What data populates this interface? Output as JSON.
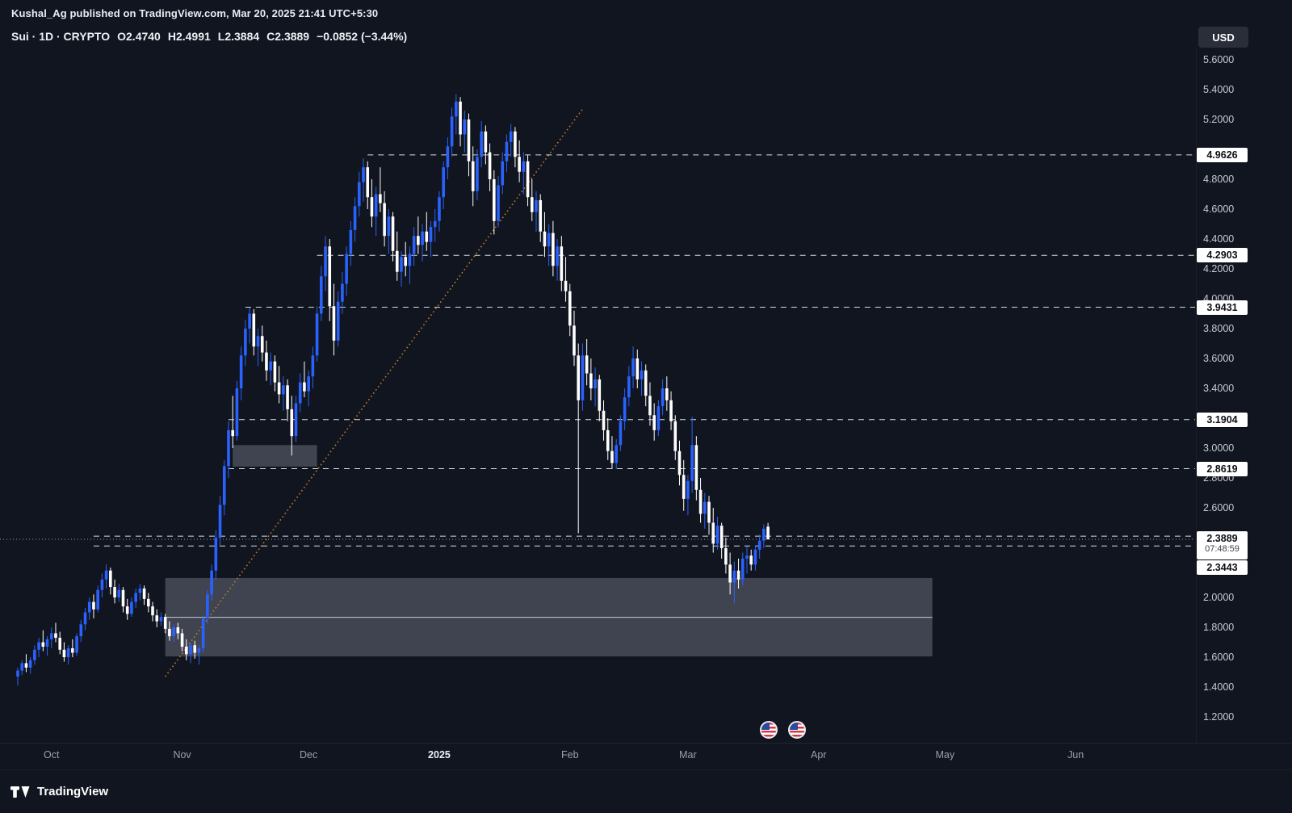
{
  "publish_bar": {
    "text": "Kushal_Ag published on TradingView.com, Mar 20, 2025 21:41 UTC+5:30"
  },
  "legend": {
    "title": "Sui · 1D · CRYPTO",
    "o": "O2.4740",
    "h": "H2.4991",
    "l": "L2.3884",
    "c": "C2.3889",
    "change": "−0.0852 (−3.44%)"
  },
  "currency_button": {
    "label": "USD"
  },
  "footer": {
    "brand": "TradingView"
  },
  "colors": {
    "background": "#11151f",
    "up_candle": "#2962ff",
    "down_candle": "#ffffff",
    "trendline": "#c07b25",
    "box_fill": "rgba(152,158,172,0.35)",
    "dashed_line": "rgba(238,241,248,0.9)",
    "current_line": "rgba(170,176,190,0.9)",
    "label_bg": "#ffffff"
  },
  "chart_data": {
    "type": "candlestick",
    "symbol": "Sui",
    "interval": "1D",
    "exchange": "CRYPTO",
    "currency": "USD",
    "ohlc_display": {
      "open": "2.4740",
      "high": "2.4991",
      "low": "2.3884",
      "close": "2.3889",
      "change": "−0.0852 (−3.44%)"
    },
    "y_axis_ticks": [
      {
        "label": "5.6000",
        "price": 5.6
      },
      {
        "label": "5.4000",
        "price": 5.4
      },
      {
        "label": "5.2000",
        "price": 5.2
      },
      {
        "label": "4.8000",
        "price": 4.8
      },
      {
        "label": "4.6000",
        "price": 4.6
      },
      {
        "label": "4.4000",
        "price": 4.4
      },
      {
        "label": "4.2000",
        "price": 4.2
      },
      {
        "label": "4.0000",
        "price": 4.0
      },
      {
        "label": "3.8000",
        "price": 3.8
      },
      {
        "label": "3.6000",
        "price": 3.6
      },
      {
        "label": "3.4000",
        "price": 3.4
      },
      {
        "label": "3.0000",
        "price": 3.0
      },
      {
        "label": "2.8000",
        "price": 2.8
      },
      {
        "label": "2.6000",
        "price": 2.6
      },
      {
        "label": "2.0000",
        "price": 2.0
      },
      {
        "label": "1.8000",
        "price": 1.8
      },
      {
        "label": "1.6000",
        "price": 1.6
      },
      {
        "label": "1.4000",
        "price": 1.4
      },
      {
        "label": "1.2000",
        "price": 1.2
      }
    ],
    "x_axis_labels": [
      {
        "label": "Oct",
        "index": 8
      },
      {
        "label": "Nov",
        "index": 39
      },
      {
        "label": "Dec",
        "index": 69
      },
      {
        "label": "2025",
        "index": 100,
        "bold": true
      },
      {
        "label": "Feb",
        "index": 131
      },
      {
        "label": "Mar",
        "index": 159
      },
      {
        "label": "Apr",
        "index": 190
      },
      {
        "label": "May",
        "index": 220
      },
      {
        "label": "Jun",
        "index": 251
      }
    ],
    "price_lines": [
      {
        "label": "4.9626",
        "price": 4.9626,
        "start_index": 83
      },
      {
        "label": "4.2903",
        "price": 4.2903,
        "start_index": 71
      },
      {
        "label": "3.9431",
        "price": 3.9431,
        "start_index": 54
      },
      {
        "label": "3.1904",
        "price": 3.1904,
        "start_index": 50
      },
      {
        "label": "2.8619",
        "price": 2.8619,
        "start_index": 50
      },
      {
        "label": "",
        "price": 2.41,
        "start_index": 18
      },
      {
        "label": "2.3443",
        "price": 2.3443,
        "start_index": 18
      }
    ],
    "current_price": {
      "label": "2.3889",
      "price": 2.3889,
      "countdown": "07:48:59"
    },
    "boxes": [
      {
        "start_index": 51,
        "end_index": 71,
        "top": 3.02,
        "bottom": 2.876
      },
      {
        "start_index": 35,
        "end_index": 217,
        "top": 2.13,
        "bottom": 1.605,
        "midline": 1.867
      }
    ],
    "trendline": {
      "start_index": 35,
      "start_price": 1.47,
      "end_index": 134,
      "end_price": 5.27
    },
    "candles": [
      [
        1.47,
        1.53,
        1.41,
        1.51
      ],
      [
        1.51,
        1.58,
        1.48,
        1.56
      ],
      [
        1.56,
        1.62,
        1.5,
        1.53
      ],
      [
        1.53,
        1.6,
        1.49,
        1.58
      ],
      [
        1.58,
        1.68,
        1.55,
        1.65
      ],
      [
        1.65,
        1.73,
        1.6,
        1.7
      ],
      [
        1.7,
        1.78,
        1.64,
        1.67
      ],
      [
        1.67,
        1.74,
        1.61,
        1.72
      ],
      [
        1.72,
        1.8,
        1.66,
        1.76
      ],
      [
        1.76,
        1.83,
        1.7,
        1.73
      ],
      [
        1.73,
        1.77,
        1.62,
        1.65
      ],
      [
        1.65,
        1.7,
        1.57,
        1.6
      ],
      [
        1.6,
        1.68,
        1.55,
        1.66
      ],
      [
        1.66,
        1.72,
        1.6,
        1.63
      ],
      [
        1.63,
        1.76,
        1.61,
        1.74
      ],
      [
        1.74,
        1.85,
        1.7,
        1.82
      ],
      [
        1.82,
        1.93,
        1.78,
        1.9
      ],
      [
        1.9,
        2.0,
        1.85,
        1.97
      ],
      [
        1.97,
        2.02,
        1.86,
        1.92
      ],
      [
        1.92,
        2.08,
        1.9,
        2.05
      ],
      [
        2.05,
        2.16,
        2.0,
        2.12
      ],
      [
        2.12,
        2.22,
        2.06,
        2.18
      ],
      [
        2.18,
        2.2,
        2.02,
        2.07
      ],
      [
        2.07,
        2.12,
        1.96,
        2.0
      ],
      [
        2.0,
        2.09,
        1.97,
        2.05
      ],
      [
        2.05,
        2.07,
        1.9,
        1.94
      ],
      [
        1.94,
        1.99,
        1.85,
        1.89
      ],
      [
        1.89,
        2.0,
        1.87,
        1.97
      ],
      [
        1.97,
        2.06,
        1.93,
        2.03
      ],
      [
        2.03,
        2.09,
        1.98,
        2.06
      ],
      [
        2.06,
        2.08,
        1.95,
        1.99
      ],
      [
        1.99,
        2.03,
        1.9,
        1.94
      ],
      [
        1.94,
        1.97,
        1.84,
        1.88
      ],
      [
        1.88,
        1.92,
        1.8,
        1.84
      ],
      [
        1.84,
        1.9,
        1.81,
        1.87
      ],
      [
        1.87,
        1.89,
        1.76,
        1.79
      ],
      [
        1.79,
        1.84,
        1.71,
        1.74
      ],
      [
        1.74,
        1.82,
        1.7,
        1.8
      ],
      [
        1.8,
        1.83,
        1.72,
        1.76
      ],
      [
        1.76,
        1.79,
        1.64,
        1.67
      ],
      [
        1.67,
        1.72,
        1.58,
        1.62
      ],
      [
        1.62,
        1.7,
        1.56,
        1.68
      ],
      [
        1.68,
        1.71,
        1.59,
        1.63
      ],
      [
        1.63,
        1.68,
        1.55,
        1.66
      ],
      [
        1.66,
        1.88,
        1.63,
        1.86
      ],
      [
        1.86,
        2.05,
        1.82,
        2.02
      ],
      [
        2.02,
        2.22,
        1.98,
        2.18
      ],
      [
        2.18,
        2.45,
        2.12,
        2.4
      ],
      [
        2.4,
        2.68,
        2.35,
        2.62
      ],
      [
        2.62,
        2.92,
        2.55,
        2.88
      ],
      [
        2.88,
        3.18,
        2.8,
        3.12
      ],
      [
        3.12,
        3.35,
        3.0,
        3.08
      ],
      [
        3.08,
        3.45,
        3.05,
        3.4
      ],
      [
        3.4,
        3.68,
        3.32,
        3.62
      ],
      [
        3.62,
        3.86,
        3.55,
        3.8
      ],
      [
        3.8,
        3.94,
        3.7,
        3.9
      ],
      [
        3.9,
        3.93,
        3.62,
        3.68
      ],
      [
        3.68,
        3.8,
        3.55,
        3.75
      ],
      [
        3.75,
        3.82,
        3.58,
        3.64
      ],
      [
        3.64,
        3.72,
        3.45,
        3.52
      ],
      [
        3.52,
        3.64,
        3.42,
        3.58
      ],
      [
        3.58,
        3.62,
        3.38,
        3.44
      ],
      [
        3.44,
        3.55,
        3.3,
        3.36
      ],
      [
        3.36,
        3.48,
        3.25,
        3.42
      ],
      [
        3.42,
        3.46,
        3.18,
        3.26
      ],
      [
        3.26,
        3.35,
        2.95,
        3.08
      ],
      [
        3.08,
        3.35,
        3.04,
        3.3
      ],
      [
        3.3,
        3.5,
        3.24,
        3.44
      ],
      [
        3.44,
        3.58,
        3.34,
        3.38
      ],
      [
        3.38,
        3.52,
        3.28,
        3.48
      ],
      [
        3.48,
        3.68,
        3.4,
        3.62
      ],
      [
        3.62,
        3.95,
        3.58,
        3.9
      ],
      [
        3.9,
        4.22,
        3.85,
        4.15
      ],
      [
        4.15,
        4.42,
        4.05,
        4.35
      ],
      [
        4.35,
        4.4,
        3.85,
        3.95
      ],
      [
        3.95,
        4.1,
        3.62,
        3.72
      ],
      [
        3.72,
        4.05,
        3.68,
        3.98
      ],
      [
        3.98,
        4.18,
        3.9,
        4.1
      ],
      [
        4.1,
        4.35,
        4.02,
        4.3
      ],
      [
        4.3,
        4.52,
        4.22,
        4.46
      ],
      [
        4.46,
        4.68,
        4.38,
        4.62
      ],
      [
        4.62,
        4.85,
        4.55,
        4.78
      ],
      [
        4.78,
        4.94,
        4.65,
        4.88
      ],
      [
        4.88,
        4.92,
        4.6,
        4.68
      ],
      [
        4.68,
        4.8,
        4.48,
        4.55
      ],
      [
        4.55,
        4.75,
        4.42,
        4.7
      ],
      [
        4.7,
        4.88,
        4.58,
        4.64
      ],
      [
        4.64,
        4.72,
        4.35,
        4.42
      ],
      [
        4.42,
        4.6,
        4.3,
        4.55
      ],
      [
        4.55,
        4.58,
        4.25,
        4.32
      ],
      [
        4.32,
        4.45,
        4.12,
        4.18
      ],
      [
        4.18,
        4.32,
        4.08,
        4.28
      ],
      [
        4.28,
        4.38,
        4.15,
        4.22
      ],
      [
        4.22,
        4.35,
        4.1,
        4.3
      ],
      [
        4.3,
        4.48,
        4.22,
        4.42
      ],
      [
        4.42,
        4.55,
        4.3,
        4.36
      ],
      [
        4.36,
        4.5,
        4.25,
        4.45
      ],
      [
        4.45,
        4.58,
        4.32,
        4.38
      ],
      [
        4.38,
        4.52,
        4.28,
        4.48
      ],
      [
        4.48,
        4.6,
        4.38,
        4.52
      ],
      [
        4.52,
        4.72,
        4.45,
        4.68
      ],
      [
        4.68,
        4.92,
        4.6,
        4.88
      ],
      [
        4.88,
        5.08,
        4.8,
        5.02
      ],
      [
        5.02,
        5.28,
        4.95,
        5.22
      ],
      [
        5.22,
        5.37,
        5.1,
        5.32
      ],
      [
        5.32,
        5.35,
        5.02,
        5.1
      ],
      [
        5.1,
        5.26,
        4.98,
        5.2
      ],
      [
        5.2,
        5.24,
        4.82,
        4.92
      ],
      [
        4.92,
        5.02,
        4.62,
        4.72
      ],
      [
        4.72,
        5.0,
        4.66,
        4.95
      ],
      [
        4.95,
        5.19,
        4.88,
        5.12
      ],
      [
        5.12,
        5.16,
        4.9,
        4.98
      ],
      [
        4.98,
        5.04,
        4.72,
        4.8
      ],
      [
        4.8,
        4.86,
        4.43,
        4.52
      ],
      [
        4.52,
        4.82,
        4.48,
        4.76
      ],
      [
        4.76,
        4.98,
        4.7,
        4.92
      ],
      [
        4.92,
        5.1,
        4.85,
        5.05
      ],
      [
        5.05,
        5.17,
        4.95,
        5.12
      ],
      [
        5.12,
        5.15,
        4.88,
        4.95
      ],
      [
        4.95,
        5.06,
        4.78,
        4.85
      ],
      [
        4.85,
        4.98,
        4.7,
        4.92
      ],
      [
        4.92,
        4.96,
        4.62,
        4.68
      ],
      [
        4.68,
        4.8,
        4.52,
        4.58
      ],
      [
        4.58,
        4.72,
        4.45,
        4.66
      ],
      [
        4.66,
        4.7,
        4.38,
        4.45
      ],
      [
        4.45,
        4.58,
        4.28,
        4.35
      ],
      [
        4.35,
        4.5,
        4.22,
        4.44
      ],
      [
        4.44,
        4.52,
        4.15,
        4.22
      ],
      [
        4.22,
        4.4,
        4.12,
        4.35
      ],
      [
        4.35,
        4.42,
        4.05,
        4.12
      ],
      [
        4.12,
        4.28,
        3.98,
        4.05
      ],
      [
        4.05,
        4.1,
        3.75,
        3.82
      ],
      [
        3.82,
        3.92,
        3.55,
        3.62
      ],
      [
        3.62,
        3.7,
        2.43,
        3.32
      ],
      [
        3.32,
        3.7,
        3.25,
        3.62
      ],
      [
        3.62,
        3.73,
        3.42,
        3.5
      ],
      [
        3.5,
        3.6,
        3.32,
        3.4
      ],
      [
        3.4,
        3.54,
        3.28,
        3.46
      ],
      [
        3.46,
        3.49,
        3.18,
        3.25
      ],
      [
        3.25,
        3.32,
        3.05,
        3.12
      ],
      [
        3.12,
        3.2,
        2.92,
        2.98
      ],
      [
        2.98,
        3.08,
        2.86,
        2.9
      ],
      [
        2.9,
        3.06,
        2.86,
        3.02
      ],
      [
        3.02,
        3.22,
        2.98,
        3.18
      ],
      [
        3.18,
        3.4,
        3.12,
        3.34
      ],
      [
        3.34,
        3.55,
        3.28,
        3.48
      ],
      [
        3.48,
        3.68,
        3.4,
        3.6
      ],
      [
        3.6,
        3.66,
        3.4,
        3.46
      ],
      [
        3.46,
        3.58,
        3.35,
        3.52
      ],
      [
        3.52,
        3.56,
        3.28,
        3.35
      ],
      [
        3.35,
        3.44,
        3.15,
        3.22
      ],
      [
        3.22,
        3.3,
        3.05,
        3.12
      ],
      [
        3.12,
        3.32,
        3.08,
        3.28
      ],
      [
        3.28,
        3.46,
        3.22,
        3.4
      ],
      [
        3.4,
        3.48,
        3.25,
        3.32
      ],
      [
        3.32,
        3.38,
        3.12,
        3.18
      ],
      [
        3.18,
        3.22,
        2.92,
        2.98
      ],
      [
        2.98,
        3.05,
        2.75,
        2.82
      ],
      [
        2.82,
        2.92,
        2.58,
        2.66
      ],
      [
        2.66,
        2.82,
        2.55,
        2.78
      ],
      [
        2.78,
        3.21,
        2.7,
        3.02
      ],
      [
        3.02,
        3.08,
        2.65,
        2.72
      ],
      [
        2.72,
        2.8,
        2.5,
        2.56
      ],
      [
        2.56,
        2.7,
        2.46,
        2.64
      ],
      [
        2.64,
        2.68,
        2.42,
        2.5
      ],
      [
        2.5,
        2.6,
        2.3,
        2.36
      ],
      [
        2.36,
        2.54,
        2.32,
        2.48
      ],
      [
        2.48,
        2.5,
        2.26,
        2.33
      ],
      [
        2.33,
        2.4,
        2.16,
        2.22
      ],
      [
        2.22,
        2.3,
        2.02,
        2.1
      ],
      [
        2.1,
        2.24,
        1.96,
        2.18
      ],
      [
        2.18,
        2.26,
        2.06,
        2.12
      ],
      [
        2.12,
        2.3,
        2.08,
        2.26
      ],
      [
        2.26,
        2.34,
        2.16,
        2.28
      ],
      [
        2.28,
        2.32,
        2.18,
        2.22
      ],
      [
        2.22,
        2.35,
        2.18,
        2.32
      ],
      [
        2.32,
        2.42,
        2.26,
        2.38
      ],
      [
        2.38,
        2.49,
        2.33,
        2.46
      ],
      [
        2.474,
        2.4991,
        2.3884,
        2.3889
      ]
    ]
  }
}
